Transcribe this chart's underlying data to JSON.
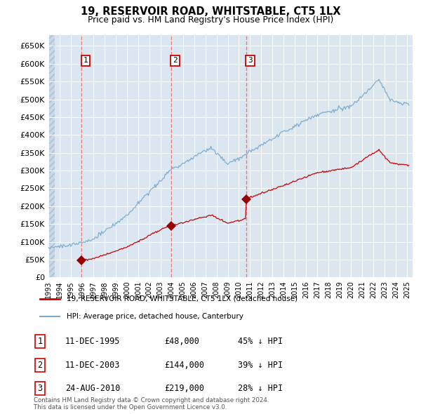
{
  "title": "19, RESERVOIR ROAD, WHITSTABLE, CT5 1LX",
  "subtitle": "Price paid vs. HM Land Registry's House Price Index (HPI)",
  "ylim": [
    0,
    680000
  ],
  "yticks": [
    0,
    50000,
    100000,
    150000,
    200000,
    250000,
    300000,
    350000,
    400000,
    450000,
    500000,
    550000,
    600000,
    650000
  ],
  "background_color": "#ffffff",
  "plot_bg_color": "#dce6f1",
  "grid_color": "#ffffff",
  "red_line_color": "#cc0000",
  "blue_line_color": "#7aaacc",
  "sale_marker_color": "#990000",
  "vline_color": "#e87070",
  "sales": [
    {
      "date_label": "11-DEC-1995",
      "date_num": 1995.94,
      "price": 48000,
      "label": "1",
      "pct": "45% ↓ HPI"
    },
    {
      "date_label": "11-DEC-2003",
      "date_num": 2003.94,
      "price": 144000,
      "label": "2",
      "pct": "39% ↓ HPI"
    },
    {
      "date_label": "24-AUG-2010",
      "date_num": 2010.64,
      "price": 219000,
      "label": "3",
      "pct": "28% ↓ HPI"
    }
  ],
  "legend_entries": [
    "19, RESERVOIR ROAD, WHITSTABLE, CT5 1LX (detached house)",
    "HPI: Average price, detached house, Canterbury"
  ],
  "footnote": "Contains HM Land Registry data © Crown copyright and database right 2024.\nThis data is licensed under the Open Government Licence v3.0.",
  "xmin": 1993.0,
  "xmax": 2025.5
}
